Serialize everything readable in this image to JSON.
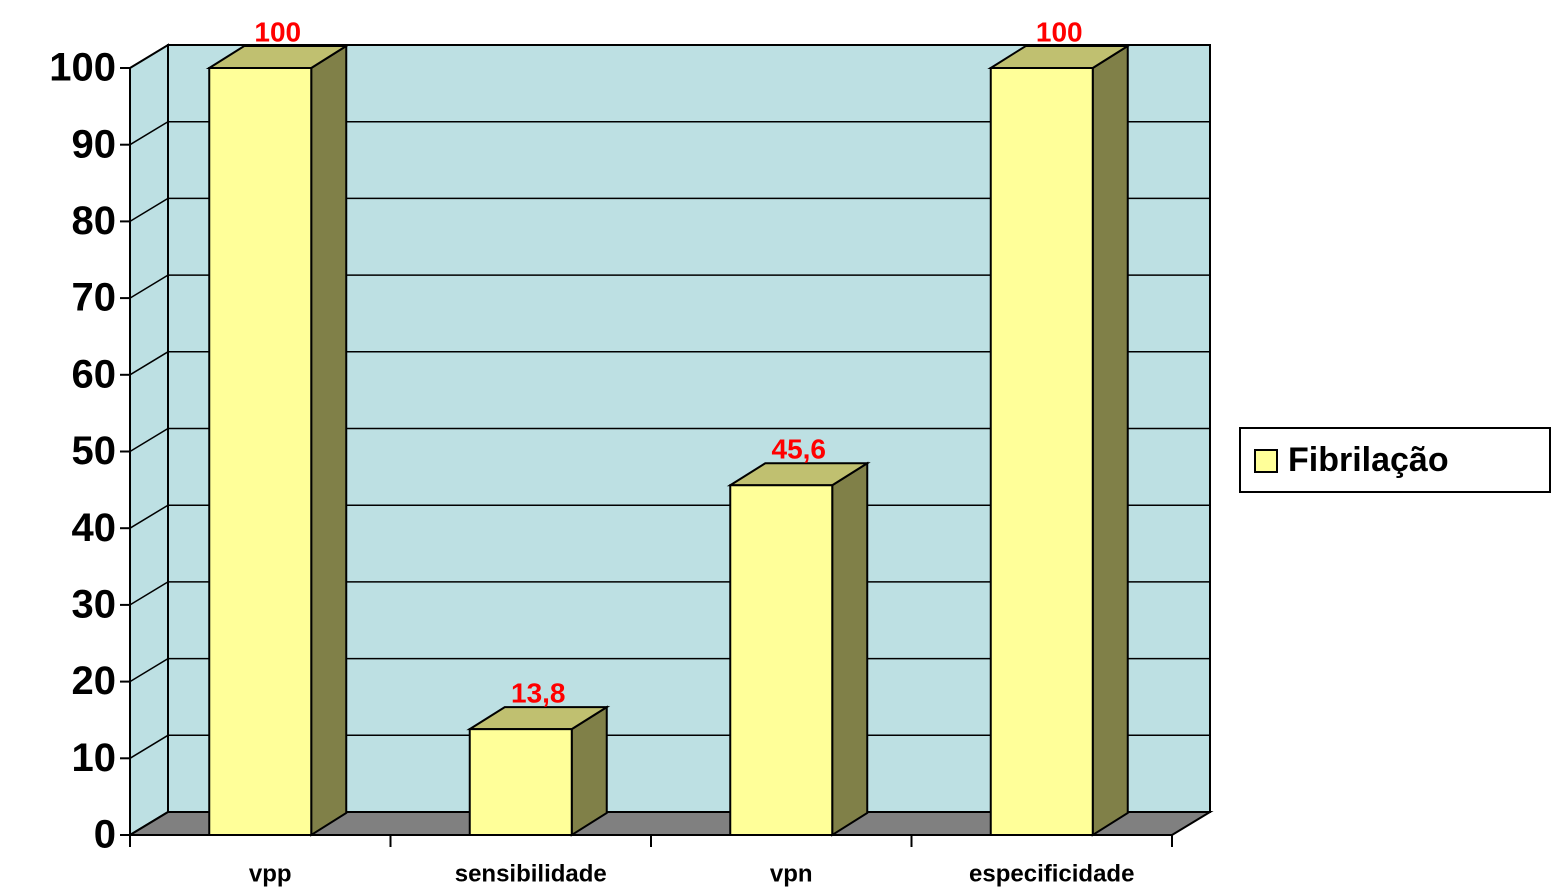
{
  "chart_data": {
    "type": "bar3d",
    "categories": [
      "vpp",
      "sensibilidade",
      "vpn",
      "especificidade"
    ],
    "series": [
      {
        "name": "Fibrilação",
        "color": "#ffff99",
        "values": [
          100,
          13.8,
          45.6,
          100
        ],
        "value_labels": [
          "100",
          "13,8",
          "45,6",
          "100"
        ]
      }
    ],
    "ylim": [
      0,
      100
    ],
    "yticks": [
      0,
      10,
      20,
      30,
      40,
      50,
      60,
      70,
      80,
      90,
      100
    ],
    "grid": true,
    "legend": "right"
  }
}
